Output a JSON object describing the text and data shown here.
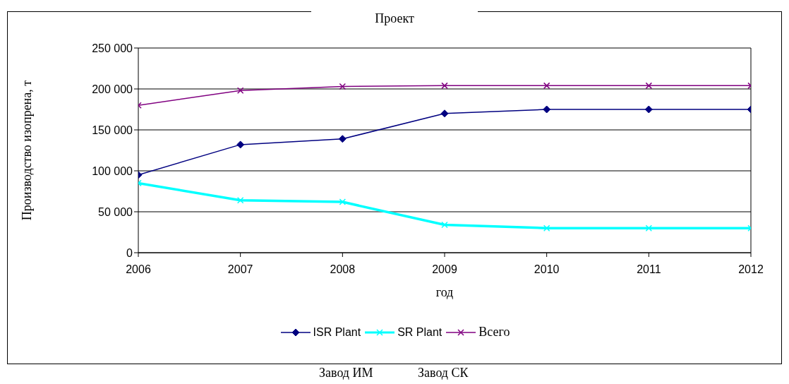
{
  "chart_data": {
    "type": "line",
    "title": "Проект",
    "xlabel": "год",
    "ylabel": "Производство изопрена, т",
    "x": [
      2006,
      2007,
      2008,
      2009,
      2010,
      2011,
      2012
    ],
    "series": [
      {
        "name": "ISR Plant",
        "color": "#000080",
        "marker": "diamond",
        "values": [
          95000,
          132000,
          139000,
          170000,
          175000,
          175000,
          175000
        ]
      },
      {
        "name": "SR Plant",
        "color": "#00ffff",
        "marker": "cross",
        "values": [
          85000,
          64000,
          62000,
          34000,
          30000,
          30000,
          30000
        ]
      },
      {
        "name": "Всего",
        "color": "#800080",
        "marker": "cross",
        "values": [
          180000,
          198000,
          203000,
          204000,
          204000,
          204000,
          204000
        ]
      }
    ],
    "xlim": [
      2006,
      2012
    ],
    "xticks": [
      2006,
      2007,
      2008,
      2009,
      2010,
      2011,
      2012
    ],
    "ylim": [
      0,
      250000
    ],
    "yticks": [
      0,
      50000,
      100000,
      150000,
      200000,
      250000
    ],
    "grid": "y",
    "legend": "bottom",
    "line_style": "solid",
    "annotations": [
      "Завод ИМ",
      "Завод СК"
    ]
  }
}
